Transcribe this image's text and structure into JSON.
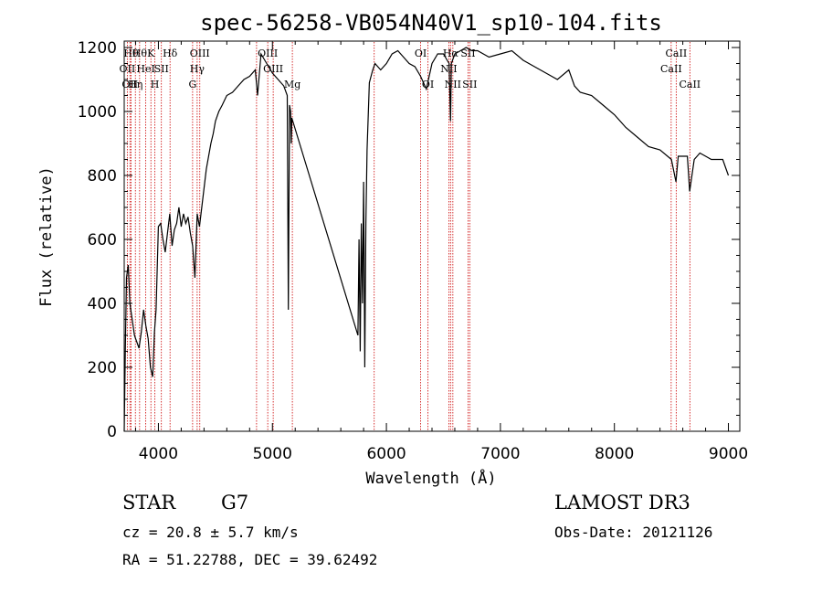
{
  "chart_data": {
    "type": "line",
    "title": "spec-56258-VB054N40V1_sp10-104.fits",
    "xlabel": "Wavelength (Å)",
    "ylabel": "Flux (relative)",
    "xlim": [
      3700,
      9100
    ],
    "ylim": [
      0,
      1220
    ],
    "xticks": [
      4000,
      5000,
      6000,
      7000,
      8000,
      9000
    ],
    "yticks": [
      0,
      200,
      400,
      600,
      800,
      1000,
      1200
    ],
    "grid": false,
    "line_color": "#000000",
    "marker_color": "#cc0000",
    "spectrum": {
      "x": [
        3700,
        3710,
        3720,
        3735,
        3750,
        3770,
        3790,
        3810,
        3830,
        3850,
        3870,
        3890,
        3910,
        3930,
        3950,
        3965,
        3980,
        4000,
        4020,
        4040,
        4060,
        4080,
        4100,
        4120,
        4140,
        4160,
        4180,
        4200,
        4220,
        4240,
        4260,
        4280,
        4300,
        4320,
        4340,
        4360,
        4380,
        4400,
        4420,
        4440,
        4460,
        4480,
        4500,
        4530,
        4560,
        4600,
        4650,
        4700,
        4750,
        4800,
        4850,
        4870,
        4900,
        4950,
        5000,
        5050,
        5100,
        5130,
        5140,
        5150,
        5160,
        5165,
        5170,
        5750,
        5760,
        5770,
        5780,
        5790,
        5800,
        5810,
        5820,
        5830,
        5850,
        5880,
        5900,
        5950,
        6000,
        6050,
        6100,
        6150,
        6200,
        6250,
        6300,
        6350,
        6400,
        6450,
        6500,
        6550,
        6563,
        6570,
        6600,
        6650,
        6700,
        6750,
        6800,
        6900,
        7000,
        7100,
        7200,
        7300,
        7400,
        7500,
        7600,
        7650,
        7700,
        7800,
        7900,
        8000,
        8100,
        8200,
        8300,
        8400,
        8500,
        8540,
        8560,
        8600,
        8640,
        8660,
        8700,
        8750,
        8800,
        8850,
        8900,
        8950,
        8980,
        9000
      ],
      "y": [
        0,
        250,
        480,
        520,
        400,
        350,
        300,
        280,
        260,
        310,
        380,
        330,
        290,
        200,
        170,
        310,
        380,
        640,
        650,
        600,
        560,
        620,
        680,
        580,
        630,
        650,
        700,
        640,
        680,
        650,
        670,
        620,
        580,
        480,
        680,
        640,
        700,
        760,
        820,
        860,
        900,
        930,
        970,
        1000,
        1020,
        1050,
        1060,
        1080,
        1100,
        1110,
        1130,
        1050,
        1180,
        1150,
        1120,
        1100,
        1080,
        1050,
        380,
        1020,
        1000,
        900,
        980,
        300,
        600,
        250,
        650,
        400,
        780,
        200,
        650,
        880,
        1090,
        1130,
        1150,
        1130,
        1150,
        1180,
        1190,
        1170,
        1150,
        1140,
        1110,
        1070,
        1150,
        1180,
        1180,
        1150,
        970,
        1150,
        1180,
        1190,
        1200,
        1190,
        1190,
        1170,
        1180,
        1190,
        1160,
        1140,
        1120,
        1100,
        1130,
        1080,
        1060,
        1050,
        1020,
        990,
        950,
        920,
        890,
        880,
        850,
        780,
        860,
        860,
        860,
        750,
        850,
        870,
        860,
        850,
        850,
        850,
        820,
        800
      ]
    },
    "line_markers": [
      {
        "x": 3727,
        "label": "OII",
        "row": 2
      },
      {
        "x": 3750,
        "label": "OII",
        "row": 3
      },
      {
        "x": 3760,
        "label": "Hθ",
        "row": 1
      },
      {
        "x": 3798,
        "label": "Hη",
        "row": 3
      },
      {
        "x": 3835,
        "label": "Hθ",
        "row": 1
      },
      {
        "x": 3889,
        "label": "HeI",
        "row": 2
      },
      {
        "x": 3934,
        "label": "K",
        "row": 1
      },
      {
        "x": 3969,
        "label": "H",
        "row": 3
      },
      {
        "x": 4026,
        "label": "SII",
        "row": 2
      },
      {
        "x": 4102,
        "label": "Hδ",
        "row": 1
      },
      {
        "x": 4300,
        "label": "G",
        "row": 3
      },
      {
        "x": 4340,
        "label": "Hγ",
        "row": 2
      },
      {
        "x": 4363,
        "label": "OIII",
        "row": 1
      },
      {
        "x": 4861,
        "label": "",
        "row": 0
      },
      {
        "x": 4959,
        "label": "OIII",
        "row": 1
      },
      {
        "x": 5007,
        "label": "OIII",
        "row": 2
      },
      {
        "x": 5175,
        "label": "Mg",
        "row": 3
      },
      {
        "x": 5893,
        "label": "",
        "row": 0
      },
      {
        "x": 6300,
        "label": "OI",
        "row": 1
      },
      {
        "x": 6364,
        "label": "OI",
        "row": 3
      },
      {
        "x": 6548,
        "label": "NII",
        "row": 2
      },
      {
        "x": 6563,
        "label": "Hα",
        "row": 1
      },
      {
        "x": 6583,
        "label": "NII",
        "row": 3
      },
      {
        "x": 6716,
        "label": "SII",
        "row": 1
      },
      {
        "x": 6731,
        "label": "SII",
        "row": 3
      },
      {
        "x": 8498,
        "label": "CaII",
        "row": 2
      },
      {
        "x": 8542,
        "label": "CaII",
        "row": 1
      },
      {
        "x": 8662,
        "label": "CaII",
        "row": 3
      }
    ]
  },
  "info": {
    "object_class": "STAR",
    "subclass": "G7",
    "survey": "LAMOST DR3",
    "redshift": "cz = 20.8 ± 5.7 km/s",
    "obs_date": "Obs-Date: 20121126",
    "coords": "RA =  51.22788, DEC =  39.62492"
  }
}
